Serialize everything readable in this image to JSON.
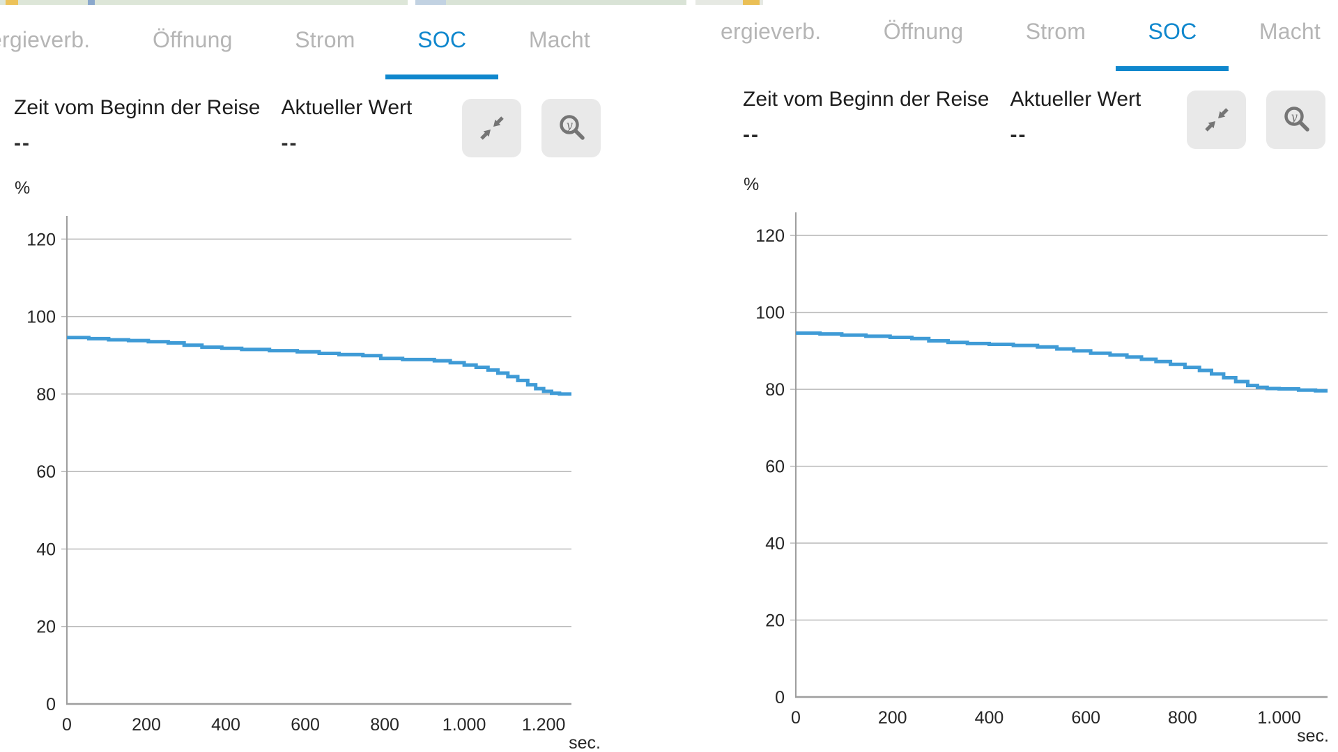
{
  "theme": {
    "accent_blue": "#0f87cd",
    "inactive_tab_gray": "#b5b5b5",
    "line_blue": "#3f9bd6",
    "button_bg": "#e9e9e9",
    "icon_gray": "#757575"
  },
  "panels": [
    {
      "tabs": [
        {
          "label": "ergieverb.",
          "active": false
        },
        {
          "label": "Öffnung",
          "active": false
        },
        {
          "label": "Strom",
          "active": false
        },
        {
          "label": "SOC",
          "active": true
        },
        {
          "label": "Macht",
          "active": false
        }
      ],
      "info": {
        "time_label": "Zeit vom Beginn der Reise",
        "time_value": "--",
        "current_label": "Aktueller Wert",
        "current_value": "--"
      },
      "buttons": [
        {
          "name": "collapse"
        },
        {
          "name": "zoom-y-axis"
        }
      ]
    },
    {
      "tabs": [
        {
          "label": "ergieverb.",
          "active": false
        },
        {
          "label": "Öffnung",
          "active": false
        },
        {
          "label": "Strom",
          "active": false
        },
        {
          "label": "SOC",
          "active": true
        },
        {
          "label": "Macht",
          "active": false
        }
      ],
      "info": {
        "time_label": "Zeit vom Beginn der Reise",
        "time_value": "--",
        "current_label": "Aktueller Wert",
        "current_value": "--"
      },
      "buttons": [
        {
          "name": "collapse"
        },
        {
          "name": "zoom-y-axis"
        }
      ]
    }
  ],
  "chart_data": [
    {
      "type": "line",
      "style": "step-after",
      "title": "SOC",
      "xlabel": "sec.",
      "ylabel": "%",
      "xlim": [
        0,
        1270
      ],
      "ylim": [
        0,
        126
      ],
      "yticks": [
        0,
        20,
        40,
        60,
        80,
        100,
        120
      ],
      "xticks": [
        0,
        200,
        400,
        600,
        800,
        1000,
        1200
      ],
      "xtick_labels": [
        "0",
        "200",
        "400",
        "600",
        "800",
        "1.000",
        "1.200"
      ],
      "grid": "horizontal",
      "legend": "none",
      "grid_color": "#b9b9b9",
      "axis_color": "#9e9e9e",
      "line_color": "#3f9bd6",
      "series": [
        {
          "name": "SOC",
          "points": [
            [
              0,
              94.6
            ],
            [
              55,
              94.3
            ],
            [
              105,
              94.0
            ],
            [
              155,
              93.8
            ],
            [
              205,
              93.5
            ],
            [
              255,
              93.2
            ],
            [
              295,
              92.6
            ],
            [
              340,
              92.1
            ],
            [
              390,
              91.8
            ],
            [
              440,
              91.5
            ],
            [
              510,
              91.2
            ],
            [
              580,
              90.9
            ],
            [
              635,
              90.5
            ],
            [
              685,
              90.2
            ],
            [
              745,
              89.9
            ],
            [
              790,
              89.2
            ],
            [
              845,
              88.9
            ],
            [
              925,
              88.6
            ],
            [
              965,
              88.1
            ],
            [
              1000,
              87.5
            ],
            [
              1030,
              86.9
            ],
            [
              1060,
              86.2
            ],
            [
              1085,
              85.4
            ],
            [
              1110,
              84.5
            ],
            [
              1135,
              83.5
            ],
            [
              1160,
              82.4
            ],
            [
              1180,
              81.4
            ],
            [
              1200,
              80.7
            ],
            [
              1220,
              80.2
            ],
            [
              1240,
              80.0
            ],
            [
              1270,
              80.0
            ]
          ]
        }
      ]
    },
    {
      "type": "line",
      "style": "step-after",
      "title": "SOC",
      "xlabel": "sec.",
      "ylabel": "%",
      "xlim": [
        0,
        1100
      ],
      "ylim": [
        0,
        126
      ],
      "yticks": [
        0,
        20,
        40,
        60,
        80,
        100,
        120
      ],
      "xticks": [
        0,
        200,
        400,
        600,
        800,
        1000
      ],
      "xtick_labels": [
        "0",
        "200",
        "400",
        "600",
        "800",
        "1.000"
      ],
      "grid": "horizontal",
      "legend": "none",
      "grid_color": "#b9b9b9",
      "axis_color": "#9e9e9e",
      "line_color": "#3f9bd6",
      "series": [
        {
          "name": "SOC",
          "points": [
            [
              0,
              94.6
            ],
            [
              50,
              94.4
            ],
            [
              95,
              94.1
            ],
            [
              145,
              93.8
            ],
            [
              195,
              93.5
            ],
            [
              240,
              93.2
            ],
            [
              275,
              92.6
            ],
            [
              315,
              92.2
            ],
            [
              355,
              91.9
            ],
            [
              400,
              91.7
            ],
            [
              450,
              91.4
            ],
            [
              500,
              91.0
            ],
            [
              540,
              90.5
            ],
            [
              575,
              90.0
            ],
            [
              610,
              89.4
            ],
            [
              650,
              88.9
            ],
            [
              685,
              88.4
            ],
            [
              715,
              87.8
            ],
            [
              745,
              87.2
            ],
            [
              775,
              86.5
            ],
            [
              805,
              85.7
            ],
            [
              835,
              84.9
            ],
            [
              860,
              84.0
            ],
            [
              885,
              83.0
            ],
            [
              910,
              82.0
            ],
            [
              935,
              81.0
            ],
            [
              955,
              80.5
            ],
            [
              975,
              80.2
            ],
            [
              1000,
              80.1
            ],
            [
              1040,
              79.8
            ],
            [
              1075,
              79.6
            ],
            [
              1100,
              79.6
            ]
          ]
        }
      ]
    }
  ]
}
